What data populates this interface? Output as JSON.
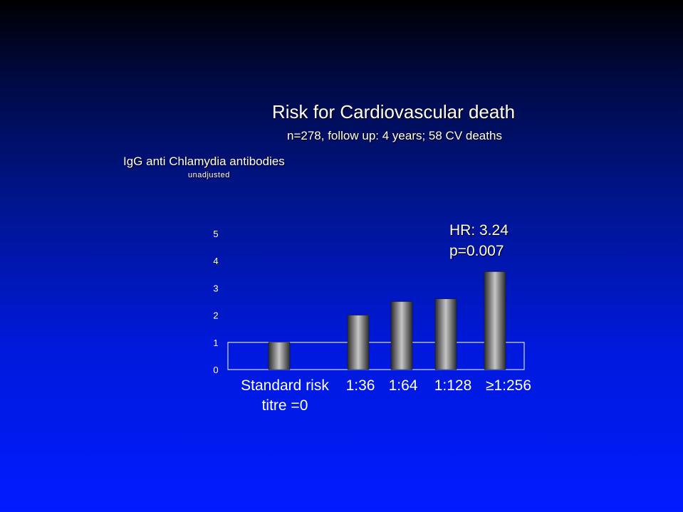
{
  "chart_data": {
    "type": "bar",
    "title": "Risk for Cardiovascular death",
    "subtitle": "n=278,  follow up:   4 years;  58 CV deaths",
    "ylabel": "IgG anti Chlamydia antibodies",
    "ylabel_note": "unadjusted",
    "categories": [
      "Standard risk\ntitre =0",
      "1:36",
      "1:64",
      "1:128",
      "≥1:256"
    ],
    "values": [
      1.0,
      2.0,
      2.5,
      2.6,
      3.6
    ],
    "ylim": [
      0,
      5
    ],
    "yticks": [
      "0",
      "1",
      "2",
      "3",
      "4",
      "5"
    ],
    "reference_line": 1,
    "grid": false,
    "legend": "none",
    "annotation": [
      "HR: 3.24",
      "p=0.007"
    ],
    "colors": {
      "bar": "#808080",
      "reference_box": "#ffffff",
      "text": "#ffffff"
    }
  }
}
